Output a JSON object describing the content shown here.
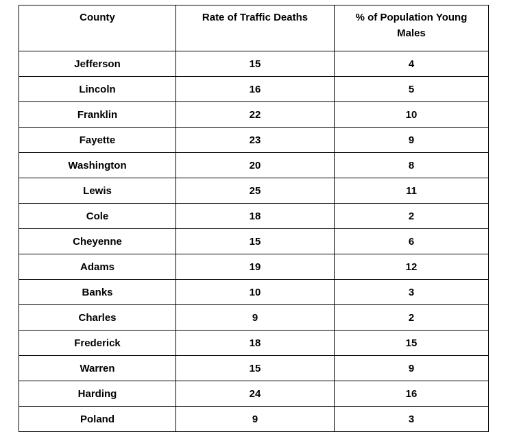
{
  "chart_data": {
    "type": "table",
    "columns": [
      "County",
      "Rate of Traffic Deaths",
      "% of Population Young Males"
    ],
    "rows": [
      [
        "Jefferson",
        "15",
        "4"
      ],
      [
        "Lincoln",
        "16",
        "5"
      ],
      [
        "Franklin",
        "22",
        "10"
      ],
      [
        "Fayette",
        "23",
        "9"
      ],
      [
        "Washington",
        "20",
        "8"
      ],
      [
        "Lewis",
        "25",
        "11"
      ],
      [
        "Cole",
        "18",
        "2"
      ],
      [
        "Cheyenne",
        "15",
        "6"
      ],
      [
        "Adams",
        "19",
        "12"
      ],
      [
        "Banks",
        "10",
        "3"
      ],
      [
        "Charles",
        "9",
        "2"
      ],
      [
        "Frederick",
        "18",
        "15"
      ],
      [
        "Warren",
        "15",
        "9"
      ],
      [
        "Harding",
        "24",
        "16"
      ],
      [
        "Poland",
        "9",
        "3"
      ]
    ]
  },
  "colors": {
    "border": "#000000",
    "text": "#000000",
    "background": "#ffffff"
  }
}
